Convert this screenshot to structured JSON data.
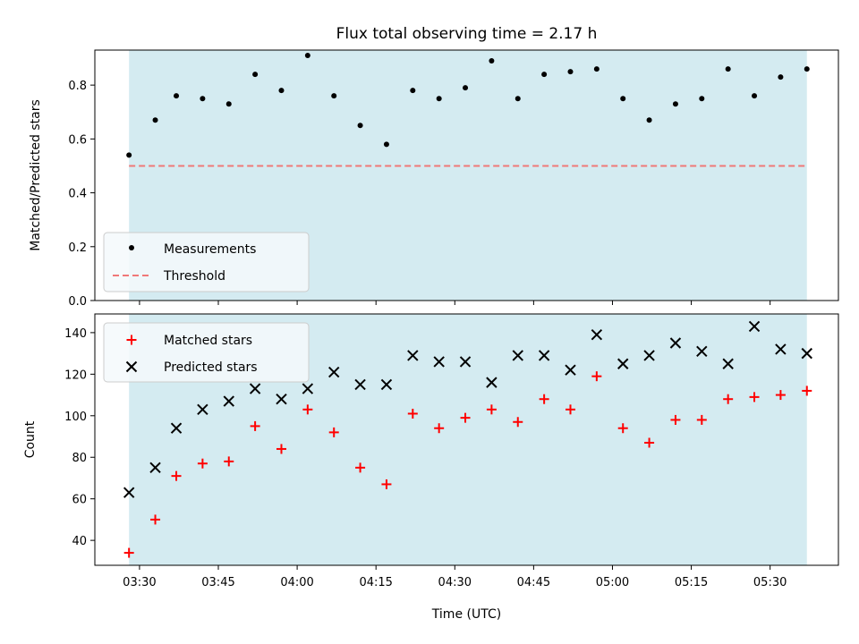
{
  "chart_data": [
    {
      "type": "scatter",
      "title": "Flux total observing time = 2.17 h",
      "ylabel": "Matched/Predicted stars",
      "ylim": [
        0,
        0.93
      ],
      "yticks": [
        0.0,
        0.2,
        0.4,
        0.6,
        0.8
      ],
      "ytick_labels": [
        "0.0",
        "0.2",
        "0.4",
        "0.6",
        "0.8"
      ],
      "x": [
        "03:28",
        "03:33",
        "03:37",
        "03:42",
        "03:47",
        "03:52",
        "03:57",
        "04:02",
        "04:07",
        "04:12",
        "04:17",
        "04:22",
        "04:27",
        "04:32",
        "04:37",
        "04:42",
        "04:47",
        "04:52",
        "04:57",
        "05:02",
        "05:07",
        "05:12",
        "05:17",
        "05:22",
        "05:27",
        "05:32",
        "05:37"
      ],
      "series": [
        {
          "name": "Measurements",
          "color": "#000000",
          "marker": "dot",
          "values": [
            0.54,
            0.67,
            0.76,
            0.75,
            0.73,
            0.84,
            0.78,
            0.91,
            0.76,
            0.65,
            0.58,
            0.78,
            0.75,
            0.79,
            0.89,
            0.75,
            0.84,
            0.85,
            0.86,
            0.75,
            0.67,
            0.73,
            0.75,
            0.86,
            0.76,
            0.83,
            0.86
          ]
        },
        {
          "name": "Threshold",
          "color": "#f07878",
          "style": "dashed",
          "values": [
            0.5,
            0.5
          ]
        }
      ],
      "legend": "lower-left",
      "shaded_span": {
        "from": "03:28",
        "to": "05:37",
        "color": "#d4ebf1"
      }
    },
    {
      "type": "scatter",
      "xlabel": "Time (UTC)",
      "ylabel": "Count",
      "ylim": [
        28,
        149
      ],
      "yticks": [
        40,
        60,
        80,
        100,
        120,
        140
      ],
      "ytick_labels": [
        "40",
        "60",
        "80",
        "100",
        "120",
        "140"
      ],
      "xticks": [
        "03:30",
        "03:45",
        "04:00",
        "04:15",
        "04:30",
        "04:45",
        "05:00",
        "05:15",
        "05:30"
      ],
      "x": [
        "03:28",
        "03:33",
        "03:37",
        "03:42",
        "03:47",
        "03:52",
        "03:57",
        "04:02",
        "04:07",
        "04:12",
        "04:17",
        "04:22",
        "04:27",
        "04:32",
        "04:37",
        "04:42",
        "04:47",
        "04:52",
        "04:57",
        "05:02",
        "05:07",
        "05:12",
        "05:17",
        "05:22",
        "05:27",
        "05:32",
        "05:37"
      ],
      "series": [
        {
          "name": "Matched stars",
          "color": "#ff0000",
          "marker": "plus",
          "values": [
            34,
            50,
            71,
            77,
            78,
            95,
            84,
            103,
            92,
            75,
            67,
            101,
            94,
            99,
            103,
            97,
            108,
            103,
            119,
            94,
            87,
            98,
            98,
            108,
            109,
            110,
            112
          ]
        },
        {
          "name": "Predicted stars",
          "color": "#000000",
          "marker": "x",
          "values": [
            63,
            75,
            94,
            103,
            107,
            113,
            108,
            113,
            121,
            115,
            115,
            129,
            126,
            126,
            116,
            129,
            129,
            122,
            139,
            125,
            129,
            135,
            131,
            125,
            143,
            132,
            130
          ]
        }
      ],
      "legend": "top-left",
      "shaded_span": {
        "from": "03:28",
        "to": "05:37",
        "color": "#d4ebf1"
      }
    }
  ]
}
